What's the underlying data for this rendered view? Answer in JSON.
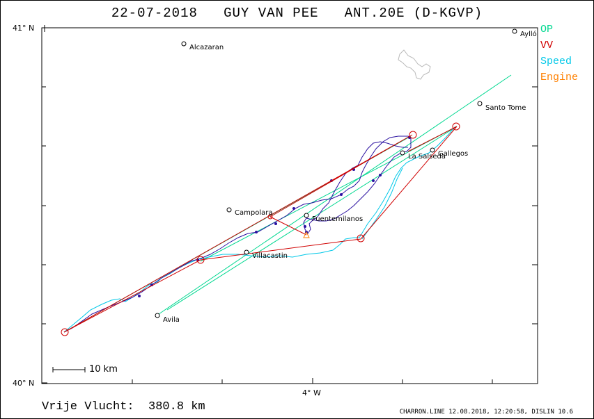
{
  "title": "22-07-2018   GUY VAN PEE   ANT.20E (D-KGVP)",
  "legend": [
    {
      "label": "OP",
      "color": "#00d890"
    },
    {
      "label": "VV",
      "color": "#d00000"
    },
    {
      "label": "Speed",
      "color": "#00c8e8"
    },
    {
      "label": "Engine",
      "color": "#ff8000"
    }
  ],
  "axes": {
    "lat_top": "41° N",
    "lat_bottom": "40° N",
    "lon_center": "4° W"
  },
  "scale_bar": "10 km",
  "places": [
    {
      "name": "Alcazaran"
    },
    {
      "name": "Aylló"
    },
    {
      "name": "Santo Tome"
    },
    {
      "name": "Gallegos"
    },
    {
      "name": "La Salseda"
    },
    {
      "name": "Campolara"
    },
    {
      "name": "Fuentemilanos"
    },
    {
      "name": "Villacastin"
    },
    {
      "name": "Avila"
    }
  ],
  "distance": "Vrije Vlucht:  380.8 km",
  "footer": "CHARRON.LINE 12.08.2018, 12:20:58, DISLIN 10.6",
  "colors": {
    "track": "#2a10a0",
    "op": "#00d890",
    "vv": "#d00000",
    "speed": "#00c8e8",
    "engine": "#ff8000"
  }
}
